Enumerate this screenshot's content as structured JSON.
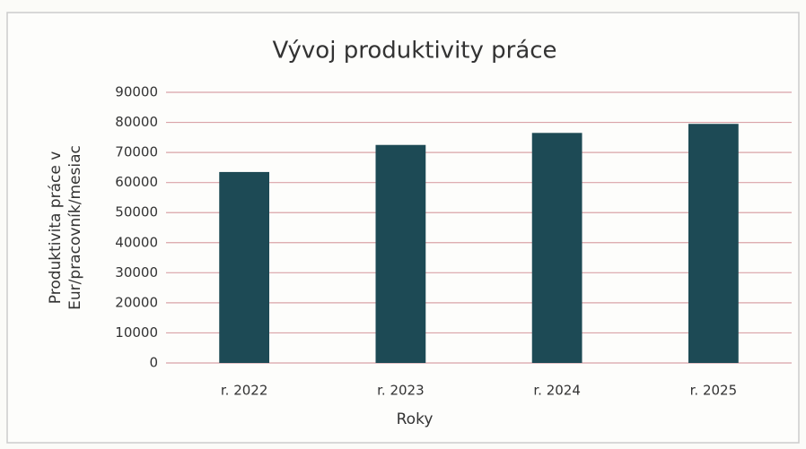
{
  "chart_data": {
    "type": "bar",
    "title": "Vývoj produktivity práce",
    "categories": [
      "r. 2022",
      "r. 2023",
      "r. 2024",
      "r. 2025"
    ],
    "values": [
      63500,
      72500,
      76500,
      79500
    ],
    "color": "#1d4a55",
    "xlabel": "Roky",
    "ylabel": [
      "Produktivita práce v",
      "Eur/pracovník/mesiac"
    ],
    "ylim": [
      0,
      90000
    ],
    "yticks": [
      0,
      10000,
      20000,
      30000,
      40000,
      50000,
      60000,
      70000,
      80000,
      90000
    ],
    "grid": true,
    "grid_color": "#d9a3a8"
  }
}
